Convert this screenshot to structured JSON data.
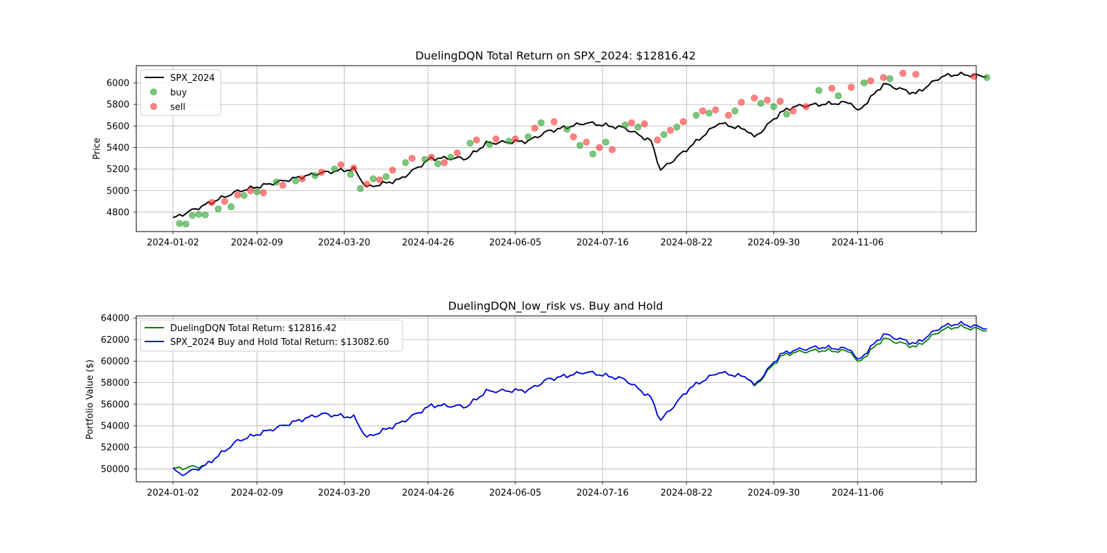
{
  "chart_data": [
    {
      "type": "line",
      "title": "DuelingDQN Total Return on SPX_2024: $12816.42",
      "xlabel": "",
      "ylabel": "Price",
      "x_tick_labels": [
        "2024-01-02",
        "2024-02-09",
        "2024-03-20",
        "2024-04-26",
        "2024-06-05",
        "2024-07-16",
        "2024-08-22",
        "2024-09-30",
        "2024-11-06",
        ""
      ],
      "y_ticks": [
        4800,
        5000,
        5200,
        5400,
        5600,
        5800,
        6000
      ],
      "ylim": [
        4620,
        6160
      ],
      "grid": true,
      "legend_position": "upper-left",
      "legend": [
        "SPX_2024",
        "buy",
        "sell"
      ],
      "colors": {
        "price": "#000000",
        "buy": "#2ca02c",
        "sell": "#ff3333"
      },
      "anchors_x": [
        0,
        20,
        40,
        46,
        56,
        60,
        70,
        80,
        91,
        97,
        110,
        116,
        128,
        140,
        148,
        151,
        160,
        169,
        170,
        178,
        180,
        188,
        192,
        200,
        210,
        212,
        220,
        230,
        238,
        243,
        251
      ],
      "anchors_y": [
        4742,
        4994,
        5130,
        5165,
        5200,
        5030,
        5100,
        5300,
        5300,
        5440,
        5460,
        5550,
        5630,
        5580,
        5460,
        5190,
        5405,
        5630,
        5620,
        5560,
        5490,
        5720,
        5780,
        5800,
        5820,
        5730,
        5990,
        5900,
        6060,
        6080,
        6065
      ],
      "buy_points": [
        [
          2,
          4695
        ],
        [
          4,
          4690
        ],
        [
          6,
          4770
        ],
        [
          8,
          4780
        ],
        [
          10,
          4775
        ],
        [
          14,
          4830
        ],
        [
          18,
          4850
        ],
        [
          22,
          4955
        ],
        [
          26,
          4990
        ],
        [
          32,
          5080
        ],
        [
          38,
          5090
        ],
        [
          44,
          5140
        ],
        [
          50,
          5200
        ],
        [
          55,
          5150
        ],
        [
          58,
          5020
        ],
        [
          62,
          5110
        ],
        [
          66,
          5130
        ],
        [
          72,
          5260
        ],
        [
          78,
          5290
        ],
        [
          82,
          5250
        ],
        [
          86,
          5310
        ],
        [
          92,
          5440
        ],
        [
          98,
          5430
        ],
        [
          104,
          5460
        ],
        [
          110,
          5500
        ],
        [
          114,
          5630
        ],
        [
          122,
          5570
        ],
        [
          126,
          5420
        ],
        [
          130,
          5340
        ],
        [
          134,
          5450
        ],
        [
          140,
          5610
        ],
        [
          144,
          5590
        ],
        [
          152,
          5520
        ],
        [
          156,
          5590
        ],
        [
          162,
          5700
        ],
        [
          166,
          5720
        ],
        [
          174,
          5740
        ],
        [
          182,
          5810
        ],
        [
          186,
          5780
        ],
        [
          190,
          5710
        ],
        [
          200,
          5930
        ],
        [
          206,
          5880
        ],
        [
          214,
          6000
        ],
        [
          222,
          6040
        ],
        [
          252,
          6050
        ]
      ],
      "sell_points": [
        [
          12,
          4890
        ],
        [
          16,
          4900
        ],
        [
          20,
          4960
        ],
        [
          24,
          5000
        ],
        [
          28,
          4980
        ],
        [
          34,
          5050
        ],
        [
          40,
          5110
        ],
        [
          46,
          5170
        ],
        [
          52,
          5240
        ],
        [
          56,
          5210
        ],
        [
          60,
          5060
        ],
        [
          64,
          5100
        ],
        [
          68,
          5190
        ],
        [
          74,
          5300
        ],
        [
          80,
          5310
        ],
        [
          84,
          5260
        ],
        [
          88,
          5350
        ],
        [
          94,
          5470
        ],
        [
          100,
          5480
        ],
        [
          106,
          5480
        ],
        [
          112,
          5580
        ],
        [
          118,
          5640
        ],
        [
          124,
          5500
        ],
        [
          128,
          5450
        ],
        [
          132,
          5400
        ],
        [
          136,
          5380
        ],
        [
          142,
          5630
        ],
        [
          146,
          5620
        ],
        [
          150,
          5470
        ],
        [
          154,
          5560
        ],
        [
          158,
          5640
        ],
        [
          164,
          5740
        ],
        [
          168,
          5750
        ],
        [
          172,
          5700
        ],
        [
          176,
          5820
        ],
        [
          180,
          5860
        ],
        [
          184,
          5840
        ],
        [
          188,
          5830
        ],
        [
          192,
          5740
        ],
        [
          196,
          5780
        ],
        [
          204,
          5950
        ],
        [
          210,
          5960
        ],
        [
          216,
          6020
        ],
        [
          220,
          6050
        ],
        [
          226,
          6090
        ],
        [
          230,
          6080
        ],
        [
          248,
          6060
        ]
      ]
    },
    {
      "type": "line",
      "title": "DuelingDQN_low_risk vs. Buy and Hold",
      "xlabel": "",
      "ylabel": "Portfolio Value ($)",
      "x_tick_labels": [
        "2024-01-02",
        "2024-02-09",
        "2024-03-20",
        "2024-04-26",
        "2024-06-05",
        "2024-07-16",
        "2024-08-22",
        "2024-09-30",
        "2024-11-06",
        ""
      ],
      "y_ticks": [
        50000,
        52000,
        54000,
        56000,
        58000,
        60000,
        62000,
        64000
      ],
      "ylim": [
        48800,
        64200
      ],
      "grid": true,
      "legend_position": "upper-left",
      "legend": [
        "DuelingDQN Total Return: $12816.42",
        "SPX_2024 Buy and Hold Total Return: $13082.60"
      ],
      "colors": {
        "strategy": "#008000",
        "buy_and_hold": "#0000ee"
      },
      "strategy_anchors_x": [
        0,
        10,
        20,
        40,
        46,
        56,
        60,
        70,
        80,
        91,
        97,
        110,
        116,
        128,
        140,
        148,
        151,
        160,
        169,
        170,
        178,
        180,
        188,
        192,
        200,
        210,
        212,
        220,
        230,
        238,
        243,
        251
      ],
      "strategy_anchors_y": [
        50000,
        50300,
        52600,
        54600,
        55100,
        54800,
        52900,
        54200,
        55900,
        55800,
        57200,
        57300,
        58300,
        59000,
        58300,
        56600,
        54500,
        57500,
        59000,
        58900,
        58500,
        57600,
        60400,
        60800,
        61000,
        60900,
        59800,
        62100,
        61300,
        62900,
        63200,
        62900
      ],
      "buyhold_anchors_x": [
        0,
        2,
        4,
        10,
        20,
        40,
        46,
        56,
        60,
        70,
        80,
        91,
        97,
        110,
        116,
        128,
        140,
        148,
        151,
        160,
        169,
        170,
        178,
        180,
        188,
        192,
        200,
        210,
        212,
        220,
        230,
        238,
        243,
        251
      ],
      "buyhold_anchors_y": [
        50000,
        49500,
        49600,
        50300,
        52600,
        54600,
        55100,
        54800,
        52900,
        54200,
        55900,
        55800,
        57200,
        57300,
        58300,
        59000,
        58300,
        56600,
        54500,
        57500,
        59000,
        58900,
        58500,
        57700,
        60600,
        61000,
        61300,
        61100,
        60000,
        62500,
        61600,
        63200,
        63500,
        63100
      ]
    }
  ]
}
